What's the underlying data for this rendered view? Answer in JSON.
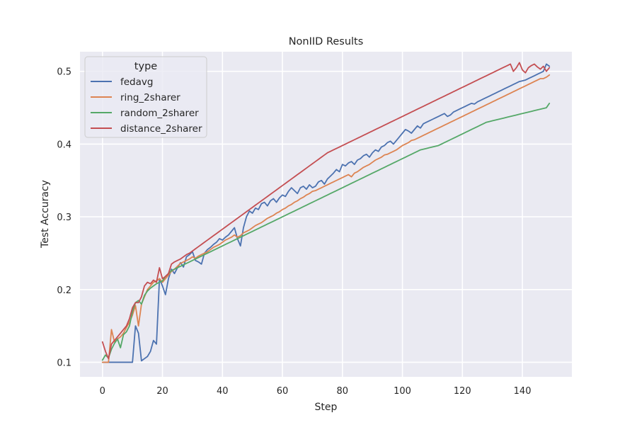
{
  "chart_data": {
    "type": "line",
    "title": "NonIID Results",
    "xlabel": "Step",
    "ylabel": "Test Accuracy",
    "xlim": [
      -7.5,
      156.5
    ],
    "ylim": [
      0.08,
      0.527
    ],
    "xticks": [
      0,
      20,
      40,
      60,
      80,
      100,
      120,
      140
    ],
    "yticks": [
      0.1,
      0.2,
      0.3,
      0.4,
      0.5
    ],
    "grid": true,
    "legend": {
      "title": "type",
      "placement": "top-left"
    },
    "series": [
      {
        "name": "fedavg",
        "color": "#4c72b0",
        "values": [
          0.1,
          0.1,
          0.1,
          0.1,
          0.1,
          0.1,
          0.1,
          0.1,
          0.1,
          0.1,
          0.1,
          0.15,
          0.14,
          0.102,
          0.105,
          0.108,
          0.115,
          0.13,
          0.125,
          0.215,
          0.205,
          0.193,
          0.215,
          0.228,
          0.222,
          0.23,
          0.237,
          0.231,
          0.245,
          0.248,
          0.252,
          0.24,
          0.238,
          0.235,
          0.25,
          0.255,
          0.258,
          0.262,
          0.265,
          0.27,
          0.268,
          0.272,
          0.275,
          0.28,
          0.285,
          0.27,
          0.26,
          0.285,
          0.3,
          0.308,
          0.305,
          0.312,
          0.31,
          0.318,
          0.32,
          0.315,
          0.322,
          0.325,
          0.32,
          0.326,
          0.33,
          0.328,
          0.335,
          0.34,
          0.336,
          0.332,
          0.34,
          0.342,
          0.338,
          0.344,
          0.34,
          0.342,
          0.348,
          0.35,
          0.345,
          0.352,
          0.356,
          0.36,
          0.365,
          0.362,
          0.372,
          0.37,
          0.374,
          0.376,
          0.372,
          0.378,
          0.38,
          0.384,
          0.386,
          0.382,
          0.388,
          0.392,
          0.39,
          0.396,
          0.398,
          0.402,
          0.404,
          0.4,
          0.405,
          0.41,
          0.415,
          0.42,
          0.418,
          0.415,
          0.42,
          0.425,
          0.422,
          0.428,
          0.43,
          0.432,
          0.434,
          0.436,
          0.438,
          0.44,
          0.442,
          0.438,
          0.44,
          0.444,
          0.446,
          0.448,
          0.45,
          0.452,
          0.454,
          0.456,
          0.455,
          0.458,
          0.46,
          0.462,
          0.464,
          0.466,
          0.468,
          0.47,
          0.472,
          0.474,
          0.476,
          0.478,
          0.48,
          0.482,
          0.484,
          0.486,
          0.487,
          0.488,
          0.49,
          0.492,
          0.494,
          0.496,
          0.498,
          0.5,
          0.51,
          0.507
        ]
      },
      {
        "name": "ring_2sharer",
        "color": "#dd8452",
        "values": [
          0.1,
          0.1,
          0.1,
          0.145,
          0.128,
          0.132,
          0.135,
          0.14,
          0.148,
          0.155,
          0.165,
          0.178,
          0.15,
          0.18,
          0.19,
          0.2,
          0.205,
          0.21,
          0.212,
          0.215,
          0.21,
          0.215,
          0.22,
          0.225,
          0.228,
          0.232,
          0.236,
          0.238,
          0.24,
          0.242,
          0.245,
          0.243,
          0.246,
          0.248,
          0.25,
          0.252,
          0.255,
          0.258,
          0.26,
          0.262,
          0.265,
          0.268,
          0.27,
          0.272,
          0.275,
          0.272,
          0.274,
          0.278,
          0.28,
          0.282,
          0.285,
          0.288,
          0.29,
          0.292,
          0.295,
          0.298,
          0.3,
          0.302,
          0.305,
          0.307,
          0.31,
          0.312,
          0.315,
          0.317,
          0.32,
          0.322,
          0.325,
          0.327,
          0.33,
          0.332,
          0.335,
          0.336,
          0.338,
          0.34,
          0.342,
          0.344,
          0.346,
          0.348,
          0.35,
          0.352,
          0.354,
          0.356,
          0.358,
          0.355,
          0.36,
          0.362,
          0.365,
          0.368,
          0.37,
          0.372,
          0.375,
          0.378,
          0.38,
          0.382,
          0.385,
          0.386,
          0.388,
          0.39,
          0.392,
          0.395,
          0.398,
          0.4,
          0.402,
          0.405,
          0.406,
          0.408,
          0.41,
          0.412,
          0.414,
          0.416,
          0.418,
          0.42,
          0.422,
          0.424,
          0.426,
          0.428,
          0.43,
          0.432,
          0.434,
          0.436,
          0.438,
          0.44,
          0.442,
          0.444,
          0.446,
          0.448,
          0.45,
          0.452,
          0.454,
          0.456,
          0.458,
          0.46,
          0.462,
          0.464,
          0.466,
          0.468,
          0.47,
          0.472,
          0.474,
          0.476,
          0.478,
          0.48,
          0.482,
          0.484,
          0.486,
          0.488,
          0.49,
          0.49,
          0.492,
          0.495
        ]
      },
      {
        "name": "random_2sharer",
        "color": "#55a868",
        "values": [
          0.103,
          0.11,
          0.106,
          0.118,
          0.126,
          0.132,
          0.12,
          0.138,
          0.142,
          0.15,
          0.17,
          0.182,
          0.185,
          0.18,
          0.192,
          0.198,
          0.202,
          0.205,
          0.208,
          0.21,
          0.212,
          0.218,
          0.222,
          0.226,
          0.228,
          0.23,
          0.232,
          0.234,
          0.236,
          0.238,
          0.24,
          0.242,
          0.244,
          0.246,
          0.248,
          0.25,
          0.252,
          0.254,
          0.256,
          0.258,
          0.26,
          0.262,
          0.264,
          0.266,
          0.268,
          0.27,
          0.272,
          0.274,
          0.276,
          0.278,
          0.28,
          0.282,
          0.284,
          0.286,
          0.288,
          0.29,
          0.292,
          0.294,
          0.296,
          0.298,
          0.3,
          0.302,
          0.304,
          0.306,
          0.308,
          0.31,
          0.312,
          0.314,
          0.316,
          0.318,
          0.32,
          0.322,
          0.324,
          0.326,
          0.328,
          0.33,
          0.332,
          0.334,
          0.336,
          0.338,
          0.34,
          0.342,
          0.344,
          0.346,
          0.348,
          0.35,
          0.352,
          0.354,
          0.356,
          0.358,
          0.36,
          0.362,
          0.364,
          0.366,
          0.368,
          0.37,
          0.372,
          0.374,
          0.376,
          0.378,
          0.38,
          0.382,
          0.384,
          0.386,
          0.388,
          0.39,
          0.392,
          0.393,
          0.394,
          0.395,
          0.396,
          0.397,
          0.398,
          0.4,
          0.402,
          0.404,
          0.406,
          0.408,
          0.41,
          0.412,
          0.414,
          0.416,
          0.418,
          0.42,
          0.422,
          0.424,
          0.426,
          0.428,
          0.43,
          0.431,
          0.432,
          0.433,
          0.434,
          0.435,
          0.436,
          0.437,
          0.438,
          0.439,
          0.44,
          0.441,
          0.442,
          0.443,
          0.444,
          0.445,
          0.446,
          0.447,
          0.448,
          0.449,
          0.45,
          0.456
        ]
      },
      {
        "name": "distance_2sharer",
        "color": "#c44e52",
        "values": [
          0.128,
          0.115,
          0.105,
          0.125,
          0.13,
          0.135,
          0.14,
          0.145,
          0.15,
          0.16,
          0.175,
          0.182,
          0.182,
          0.19,
          0.205,
          0.21,
          0.208,
          0.213,
          0.21,
          0.23,
          0.215,
          0.218,
          0.222,
          0.235,
          0.238,
          0.24,
          0.242,
          0.245,
          0.248,
          0.25,
          0.253,
          0.256,
          0.259,
          0.262,
          0.265,
          0.268,
          0.271,
          0.274,
          0.277,
          0.28,
          0.283,
          0.286,
          0.289,
          0.292,
          0.295,
          0.298,
          0.301,
          0.304,
          0.307,
          0.31,
          0.313,
          0.316,
          0.319,
          0.322,
          0.325,
          0.328,
          0.331,
          0.334,
          0.337,
          0.34,
          0.343,
          0.346,
          0.349,
          0.352,
          0.355,
          0.358,
          0.361,
          0.364,
          0.367,
          0.37,
          0.373,
          0.376,
          0.379,
          0.382,
          0.385,
          0.388,
          0.39,
          0.392,
          0.394,
          0.396,
          0.398,
          0.4,
          0.402,
          0.404,
          0.406,
          0.408,
          0.41,
          0.412,
          0.414,
          0.416,
          0.418,
          0.42,
          0.422,
          0.424,
          0.426,
          0.428,
          0.43,
          0.432,
          0.434,
          0.436,
          0.438,
          0.44,
          0.442,
          0.444,
          0.446,
          0.448,
          0.45,
          0.452,
          0.454,
          0.456,
          0.458,
          0.46,
          0.462,
          0.464,
          0.466,
          0.468,
          0.47,
          0.472,
          0.474,
          0.476,
          0.478,
          0.48,
          0.482,
          0.484,
          0.486,
          0.488,
          0.49,
          0.492,
          0.494,
          0.496,
          0.498,
          0.5,
          0.502,
          0.504,
          0.506,
          0.508,
          0.51,
          0.5,
          0.505,
          0.512,
          0.502,
          0.498,
          0.505,
          0.508,
          0.51,
          0.506,
          0.503,
          0.507,
          0.5,
          0.505
        ]
      }
    ]
  }
}
